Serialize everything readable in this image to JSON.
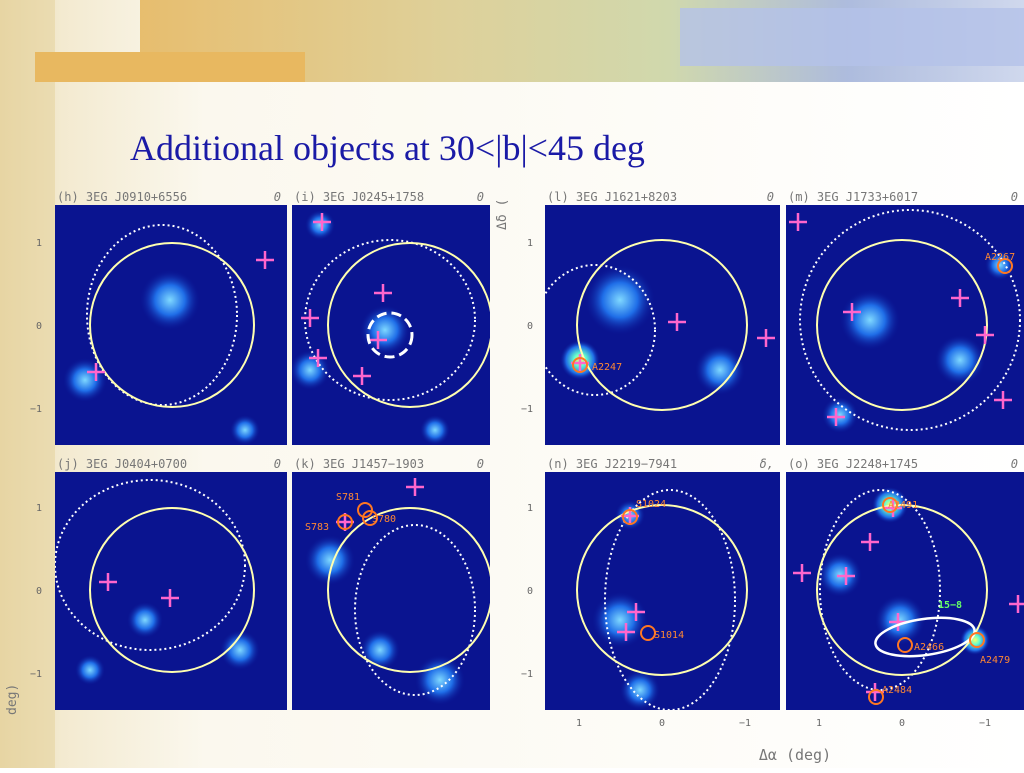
{
  "title": "Additional objects at 30<|b|<45 deg",
  "panels": [
    {
      "label": "(h) 3EG J0910+6556",
      "corner": "0",
      "sources": []
    },
    {
      "label": "(i) 3EG J0245+1758",
      "corner": "0",
      "sources": []
    },
    {
      "label": "(l) 3EG J1621+8203",
      "corner": "0",
      "sources": [
        "A2247"
      ]
    },
    {
      "label": "(m) 3EG J1733+6017",
      "corner": "0",
      "sources": [
        "A2267"
      ]
    },
    {
      "label": "(j) 3EG J0404+0700",
      "corner": "0",
      "sources": []
    },
    {
      "label": "(k) 3EG J1457−1903",
      "corner": "0",
      "sources": [
        "S781",
        "S780",
        "S783"
      ]
    },
    {
      "label": "(n) 3EG J2219−7941",
      "corner": "δ,",
      "sources": [
        "S1024",
        "S1014"
      ]
    },
    {
      "label": "(o) 3EG J2248+1745",
      "corner": "0",
      "sources": [
        "A2491",
        "A2466",
        "A2479",
        "A2484",
        "15−8"
      ]
    }
  ],
  "ticks": {
    "y": [
      "1",
      "0",
      "−1"
    ],
    "x": [
      "1",
      "0",
      "−1"
    ]
  },
  "axis_labels": {
    "x": "Δα (deg)",
    "y_top": "Δδ (",
    "y_bottom": "deg)"
  }
}
